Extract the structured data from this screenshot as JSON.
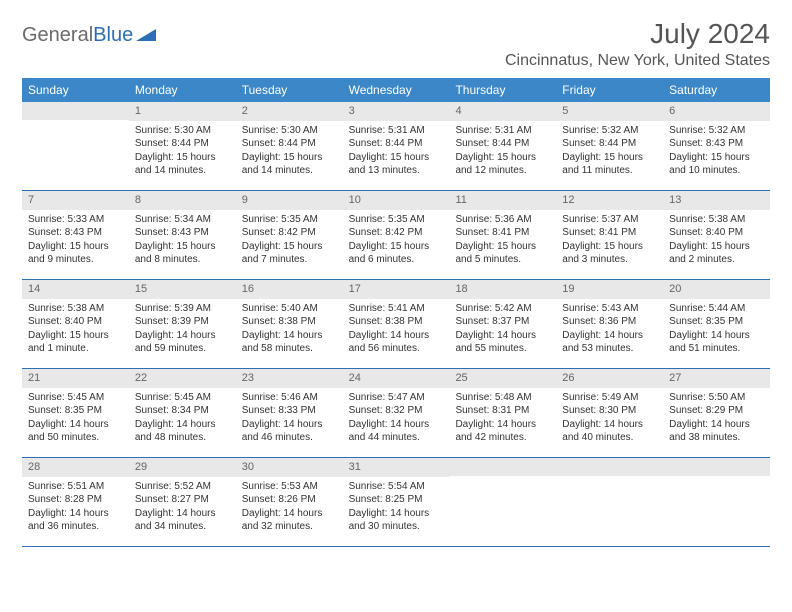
{
  "logo": {
    "text1": "General",
    "text2": "Blue"
  },
  "header": {
    "month_title": "July 2024",
    "location": "Cincinnatus, New York, United States"
  },
  "day_names": [
    "Sunday",
    "Monday",
    "Tuesday",
    "Wednesday",
    "Thursday",
    "Friday",
    "Saturday"
  ],
  "colors": {
    "header_bg": "#3b87c8",
    "accent": "#2c6fb5",
    "number_bg": "#e8e8e8"
  },
  "weeks": [
    [
      null,
      {
        "n": "1",
        "sr": "Sunrise: 5:30 AM",
        "ss": "Sunset: 8:44 PM",
        "dl": "Daylight: 15 hours and 14 minutes."
      },
      {
        "n": "2",
        "sr": "Sunrise: 5:30 AM",
        "ss": "Sunset: 8:44 PM",
        "dl": "Daylight: 15 hours and 14 minutes."
      },
      {
        "n": "3",
        "sr": "Sunrise: 5:31 AM",
        "ss": "Sunset: 8:44 PM",
        "dl": "Daylight: 15 hours and 13 minutes."
      },
      {
        "n": "4",
        "sr": "Sunrise: 5:31 AM",
        "ss": "Sunset: 8:44 PM",
        "dl": "Daylight: 15 hours and 12 minutes."
      },
      {
        "n": "5",
        "sr": "Sunrise: 5:32 AM",
        "ss": "Sunset: 8:44 PM",
        "dl": "Daylight: 15 hours and 11 minutes."
      },
      {
        "n": "6",
        "sr": "Sunrise: 5:32 AM",
        "ss": "Sunset: 8:43 PM",
        "dl": "Daylight: 15 hours and 10 minutes."
      }
    ],
    [
      {
        "n": "7",
        "sr": "Sunrise: 5:33 AM",
        "ss": "Sunset: 8:43 PM",
        "dl": "Daylight: 15 hours and 9 minutes."
      },
      {
        "n": "8",
        "sr": "Sunrise: 5:34 AM",
        "ss": "Sunset: 8:43 PM",
        "dl": "Daylight: 15 hours and 8 minutes."
      },
      {
        "n": "9",
        "sr": "Sunrise: 5:35 AM",
        "ss": "Sunset: 8:42 PM",
        "dl": "Daylight: 15 hours and 7 minutes."
      },
      {
        "n": "10",
        "sr": "Sunrise: 5:35 AM",
        "ss": "Sunset: 8:42 PM",
        "dl": "Daylight: 15 hours and 6 minutes."
      },
      {
        "n": "11",
        "sr": "Sunrise: 5:36 AM",
        "ss": "Sunset: 8:41 PM",
        "dl": "Daylight: 15 hours and 5 minutes."
      },
      {
        "n": "12",
        "sr": "Sunrise: 5:37 AM",
        "ss": "Sunset: 8:41 PM",
        "dl": "Daylight: 15 hours and 3 minutes."
      },
      {
        "n": "13",
        "sr": "Sunrise: 5:38 AM",
        "ss": "Sunset: 8:40 PM",
        "dl": "Daylight: 15 hours and 2 minutes."
      }
    ],
    [
      {
        "n": "14",
        "sr": "Sunrise: 5:38 AM",
        "ss": "Sunset: 8:40 PM",
        "dl": "Daylight: 15 hours and 1 minute."
      },
      {
        "n": "15",
        "sr": "Sunrise: 5:39 AM",
        "ss": "Sunset: 8:39 PM",
        "dl": "Daylight: 14 hours and 59 minutes."
      },
      {
        "n": "16",
        "sr": "Sunrise: 5:40 AM",
        "ss": "Sunset: 8:38 PM",
        "dl": "Daylight: 14 hours and 58 minutes."
      },
      {
        "n": "17",
        "sr": "Sunrise: 5:41 AM",
        "ss": "Sunset: 8:38 PM",
        "dl": "Daylight: 14 hours and 56 minutes."
      },
      {
        "n": "18",
        "sr": "Sunrise: 5:42 AM",
        "ss": "Sunset: 8:37 PM",
        "dl": "Daylight: 14 hours and 55 minutes."
      },
      {
        "n": "19",
        "sr": "Sunrise: 5:43 AM",
        "ss": "Sunset: 8:36 PM",
        "dl": "Daylight: 14 hours and 53 minutes."
      },
      {
        "n": "20",
        "sr": "Sunrise: 5:44 AM",
        "ss": "Sunset: 8:35 PM",
        "dl": "Daylight: 14 hours and 51 minutes."
      }
    ],
    [
      {
        "n": "21",
        "sr": "Sunrise: 5:45 AM",
        "ss": "Sunset: 8:35 PM",
        "dl": "Daylight: 14 hours and 50 minutes."
      },
      {
        "n": "22",
        "sr": "Sunrise: 5:45 AM",
        "ss": "Sunset: 8:34 PM",
        "dl": "Daylight: 14 hours and 48 minutes."
      },
      {
        "n": "23",
        "sr": "Sunrise: 5:46 AM",
        "ss": "Sunset: 8:33 PM",
        "dl": "Daylight: 14 hours and 46 minutes."
      },
      {
        "n": "24",
        "sr": "Sunrise: 5:47 AM",
        "ss": "Sunset: 8:32 PM",
        "dl": "Daylight: 14 hours and 44 minutes."
      },
      {
        "n": "25",
        "sr": "Sunrise: 5:48 AM",
        "ss": "Sunset: 8:31 PM",
        "dl": "Daylight: 14 hours and 42 minutes."
      },
      {
        "n": "26",
        "sr": "Sunrise: 5:49 AM",
        "ss": "Sunset: 8:30 PM",
        "dl": "Daylight: 14 hours and 40 minutes."
      },
      {
        "n": "27",
        "sr": "Sunrise: 5:50 AM",
        "ss": "Sunset: 8:29 PM",
        "dl": "Daylight: 14 hours and 38 minutes."
      }
    ],
    [
      {
        "n": "28",
        "sr": "Sunrise: 5:51 AM",
        "ss": "Sunset: 8:28 PM",
        "dl": "Daylight: 14 hours and 36 minutes."
      },
      {
        "n": "29",
        "sr": "Sunrise: 5:52 AM",
        "ss": "Sunset: 8:27 PM",
        "dl": "Daylight: 14 hours and 34 minutes."
      },
      {
        "n": "30",
        "sr": "Sunrise: 5:53 AM",
        "ss": "Sunset: 8:26 PM",
        "dl": "Daylight: 14 hours and 32 minutes."
      },
      {
        "n": "31",
        "sr": "Sunrise: 5:54 AM",
        "ss": "Sunset: 8:25 PM",
        "dl": "Daylight: 14 hours and 30 minutes."
      },
      null,
      null,
      null
    ]
  ]
}
